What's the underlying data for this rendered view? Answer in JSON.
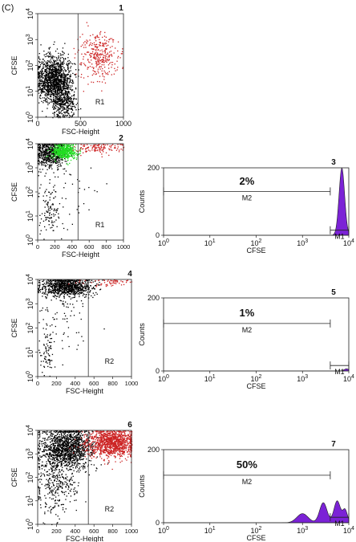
{
  "figure_label": "(C)",
  "chart_data": [
    {
      "panel": "1",
      "type": "scatter",
      "xlabel": "FSC-Height",
      "ylabel": "CFSE",
      "x_ticks": [
        "0",
        "500",
        "1000"
      ],
      "y_ticks": [
        "10",
        "10",
        "10",
        "10",
        "10"
      ],
      "y_tick_exps": [
        "0",
        "1",
        "2",
        "3",
        "4"
      ],
      "xlim": [
        0,
        1000
      ],
      "ylim": [
        0,
        4
      ],
      "y_scale": "log",
      "gate_x": 470,
      "region": "R1",
      "series": [
        {
          "color": "#000000",
          "cx": 190,
          "cy": 1.5,
          "sx": 100,
          "sy": 0.45,
          "n": 1300
        },
        {
          "color": "#000000",
          "cx": 300,
          "cy": 0.6,
          "sx": 70,
          "sy": 0.35,
          "n": 350
        },
        {
          "color": "#cc2222",
          "cx": 700,
          "cy": 2.4,
          "sx": 110,
          "sy": 0.45,
          "n": 320
        }
      ]
    },
    {
      "panel": "2",
      "type": "scatter",
      "xlabel": "FSC-Height",
      "ylabel": "CFSE",
      "x_ticks": [
        "0",
        "200",
        "400",
        "600",
        "800",
        "1000"
      ],
      "y_ticks": [
        "10",
        "10",
        "10",
        "10",
        "10"
      ],
      "y_tick_exps": [
        "0",
        "1",
        "2",
        "3",
        "4"
      ],
      "xlim": [
        0,
        1000
      ],
      "ylim": [
        0,
        4
      ],
      "y_scale": "log",
      "gate_x": 470,
      "region": "R1",
      "series": [
        {
          "color": "#000000",
          "cx": 150,
          "cy": 3.6,
          "sx": 90,
          "sy": 0.3,
          "n": 600
        },
        {
          "color": "#000000",
          "cx": 120,
          "cy": 1.2,
          "sx": 50,
          "sy": 0.5,
          "n": 90
        },
        {
          "color": "#000000",
          "cx": 300,
          "cy": 2.0,
          "sx": 200,
          "sy": 1.0,
          "n": 60
        },
        {
          "color": "#22dd22",
          "cx": 300,
          "cy": 3.7,
          "sx": 70,
          "sy": 0.15,
          "n": 500
        },
        {
          "color": "#cc2222",
          "cx": 700,
          "cy": 3.85,
          "sx": 150,
          "sy": 0.12,
          "n": 120
        }
      ]
    },
    {
      "panel": "3",
      "type": "area",
      "xlabel": "CFSE",
      "ylabel": "Counts",
      "x_ticks": [
        "10",
        "10",
        "10",
        "10",
        "10"
      ],
      "x_tick_exps": [
        "0",
        "1",
        "2",
        "3",
        "4"
      ],
      "y_ticks": [
        "0",
        "200"
      ],
      "xlim": [
        0,
        4
      ],
      "ylim": [
        0,
        200
      ],
      "x_scale": "log",
      "y_max_tick": 200,
      "fill": "#7b22d6",
      "percent_label": "2%",
      "markers": [
        {
          "label": "M2",
          "from": 0,
          "to": 3.6,
          "level": 130
        },
        {
          "label": "M1",
          "from": 3.6,
          "to": 4,
          "level": 15
        }
      ],
      "peaks": [
        {
          "center": 3.85,
          "width": 0.06,
          "height": 200
        }
      ]
    },
    {
      "panel": "4",
      "type": "scatter",
      "xlabel": "FSC-Height",
      "ylabel": "CFSE",
      "x_ticks": [
        "0",
        "200",
        "400",
        "600",
        "800",
        "1000"
      ],
      "y_ticks": [
        "10",
        "10",
        "10",
        "10",
        "10"
      ],
      "y_tick_exps": [
        "0",
        "1",
        "2",
        "3",
        "4"
      ],
      "xlim": [
        0,
        1000
      ],
      "ylim": [
        0,
        4
      ],
      "y_scale": "log",
      "gate_x": 540,
      "region": "R2",
      "series": [
        {
          "color": "#000000",
          "cx": 300,
          "cy": 3.7,
          "sx": 130,
          "sy": 0.2,
          "n": 900
        },
        {
          "color": "#000000",
          "cx": 100,
          "cy": 1.0,
          "sx": 40,
          "sy": 0.5,
          "n": 70
        },
        {
          "color": "#000000",
          "cx": 250,
          "cy": 2.5,
          "sx": 150,
          "sy": 0.9,
          "n": 90
        },
        {
          "color": "#cc2222",
          "cx": 750,
          "cy": 3.9,
          "sx": 150,
          "sy": 0.08,
          "n": 60
        }
      ]
    },
    {
      "panel": "5",
      "type": "area",
      "xlabel": "CFSE",
      "ylabel": "Counts",
      "x_ticks": [
        "10",
        "10",
        "10",
        "10",
        "10"
      ],
      "x_tick_exps": [
        "0",
        "1",
        "2",
        "3",
        "4"
      ],
      "y_ticks": [
        "0",
        "200"
      ],
      "xlim": [
        0,
        4
      ],
      "ylim": [
        0,
        200
      ],
      "x_scale": "log",
      "y_max_tick": 200,
      "fill": "#7b22d6",
      "percent_label": "1%",
      "markers": [
        {
          "label": "M2",
          "from": 0,
          "to": 3.6,
          "level": 130
        },
        {
          "label": "M1",
          "from": 3.6,
          "to": 4,
          "level": 15
        }
      ],
      "peaks": [
        {
          "center": 3.95,
          "width": 0.05,
          "height": 6
        }
      ]
    },
    {
      "panel": "6",
      "type": "scatter",
      "xlabel": "FSC-Height",
      "ylabel": "CFSE",
      "x_ticks": [
        "0",
        "200",
        "400",
        "600",
        "800",
        "1000"
      ],
      "y_ticks": [
        "10",
        "10",
        "10",
        "10",
        "10"
      ],
      "y_tick_exps": [
        "0",
        "1",
        "2",
        "3",
        "4"
      ],
      "xlim": [
        0,
        1000
      ],
      "ylim": [
        0,
        4
      ],
      "y_scale": "log",
      "gate_x": 540,
      "region": "R2",
      "series": [
        {
          "color": "#000000",
          "cx": 300,
          "cy": 3.3,
          "sx": 140,
          "sy": 0.45,
          "n": 1300
        },
        {
          "color": "#000000",
          "cx": 200,
          "cy": 1.8,
          "sx": 110,
          "sy": 0.7,
          "n": 350
        },
        {
          "color": "#cc2222",
          "cx": 780,
          "cy": 3.5,
          "sx": 140,
          "sy": 0.3,
          "n": 1100
        }
      ]
    },
    {
      "panel": "7",
      "type": "area",
      "xlabel": "CFSE",
      "ylabel": "Counts",
      "x_ticks": [
        "10",
        "10",
        "10",
        "10",
        "10"
      ],
      "x_tick_exps": [
        "0",
        "1",
        "2",
        "3",
        "4"
      ],
      "y_ticks": [
        "0",
        "200"
      ],
      "xlim": [
        0,
        4
      ],
      "ylim": [
        0,
        200
      ],
      "x_scale": "log",
      "y_max_tick": 200,
      "fill": "#7b22d6",
      "percent_label": "50%",
      "markers": [
        {
          "label": "M2",
          "from": 0,
          "to": 3.6,
          "level": 130
        },
        {
          "label": "M1",
          "from": 3.6,
          "to": 4,
          "level": 15
        }
      ],
      "peaks": [
        {
          "center": 3.0,
          "width": 0.12,
          "height": 25
        },
        {
          "center": 3.45,
          "width": 0.08,
          "height": 55
        },
        {
          "center": 3.75,
          "width": 0.07,
          "height": 60
        },
        {
          "center": 3.92,
          "width": 0.05,
          "height": 35
        }
      ]
    }
  ]
}
